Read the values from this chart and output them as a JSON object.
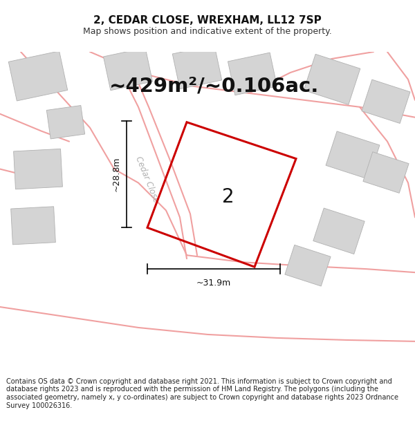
{
  "title": "2, CEDAR CLOSE, WREXHAM, LL12 7SP",
  "subtitle": "Map shows position and indicative extent of the property.",
  "area_text": "~429m²/~0.106ac.",
  "label_number": "2",
  "dim_width": "~31.9m",
  "dim_height": "~28.8m",
  "street_label": "Cedar Close",
  "footer": "Contains OS data © Crown copyright and database right 2021. This information is subject to Crown copyright and database rights 2023 and is reproduced with the permission of HM Land Registry. The polygons (including the associated geometry, namely x, y co-ordinates) are subject to Crown copyright and database rights 2023 Ordnance Survey 100026316.",
  "map_bg": "#eeecec",
  "road_color": "#f0a0a0",
  "building_color": "#d4d4d4",
  "plot_color": "#cc0000",
  "plot_linewidth": 2.2,
  "title_fontsize": 11,
  "subtitle_fontsize": 9,
  "area_fontsize": 22,
  "footer_fontsize": 7
}
